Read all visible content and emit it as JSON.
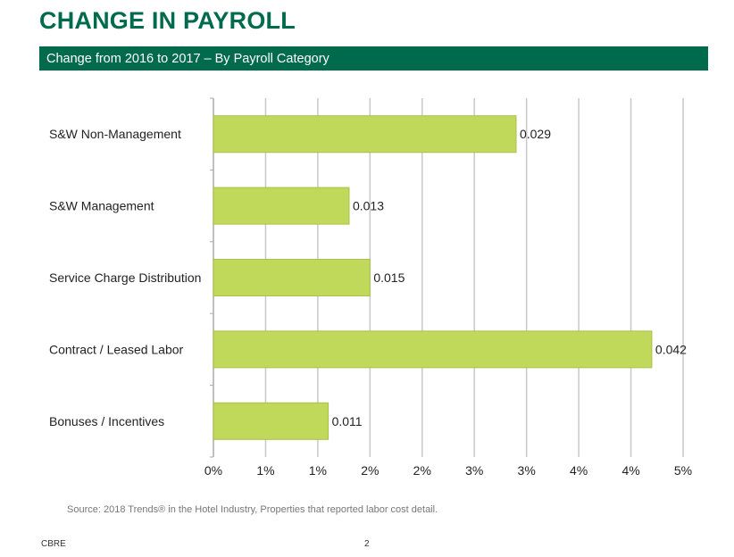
{
  "page": {
    "title": "CHANGE IN PAYROLL",
    "banner": "Change from 2016 to 2017 – By Payroll Category",
    "source": "Source: 2018 Trends® in the Hotel Industry, Properties that reported labor cost detail.",
    "footer_left": "CBRE",
    "page_number": "2"
  },
  "colors": {
    "brand_green": "#006a4d",
    "bar_fill": "#c0d95b",
    "bar_stroke": "#a9c04a",
    "grid": "#c8c8c8"
  },
  "chart_data": {
    "type": "bar",
    "orientation": "horizontal",
    "categories": [
      "S&W Non-Management",
      "S&W Management",
      "Service Charge Distribution",
      "Contract / Leased Labor",
      "Bonuses / Incentives"
    ],
    "values": [
      0.029,
      0.013,
      0.015,
      0.042,
      0.011
    ],
    "data_labels": [
      "0.029",
      "0.013",
      "0.015",
      "0.042",
      "0.011"
    ],
    "tick_labels": [
      "0%",
      "1%",
      "1%",
      "2%",
      "2%",
      "3%",
      "3%",
      "4%",
      "4%",
      "5%"
    ],
    "xlim": [
      0,
      0.045
    ],
    "grid": true
  }
}
